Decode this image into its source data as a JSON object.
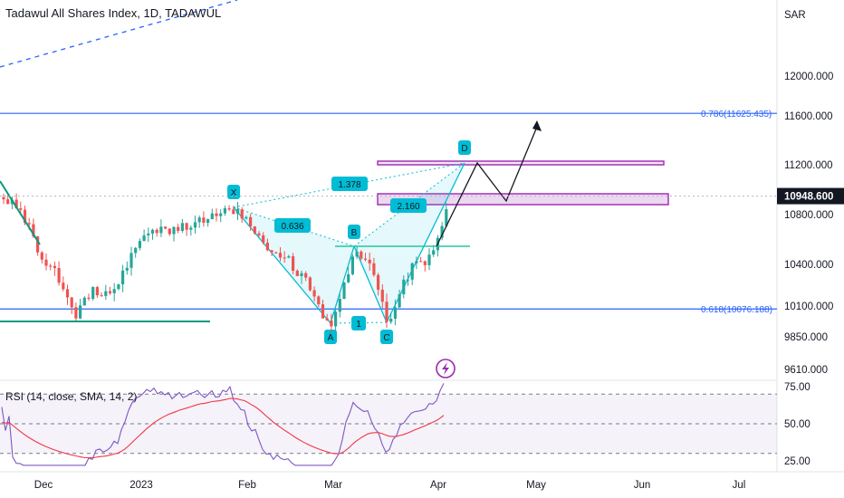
{
  "header": {
    "title": "Tadawul All Shares Index, 1D, TADAWUL"
  },
  "chart_data": {
    "type": "candlestick",
    "title": "Tadawul All Shares Index, 1D, TADAWUL",
    "currency": "SAR",
    "price_axis": {
      "labels": [
        "12000.000",
        "11600.000",
        "11200.000",
        "10800.000",
        "10400.000",
        "10100.000",
        "9850.000",
        "9610.000"
      ],
      "values": [
        12000,
        11600,
        11200,
        10800,
        10400,
        10100,
        9850,
        9610
      ],
      "current_price_label": "10948.600",
      "current_price": 10948.6
    },
    "time_axis": {
      "labels": [
        "Dec",
        "2023",
        "Feb",
        "Mar",
        "Apr",
        "May",
        "Jun",
        "Jul"
      ]
    },
    "fib_levels": [
      {
        "label": "0.786(11625.435)",
        "value": 11625.435
      },
      {
        "label": "0.618(10076.188)",
        "value": 10076.188
      }
    ],
    "harmonic_points": [
      {
        "name": "X",
        "value": 10860
      },
      {
        "name": "A",
        "value": 9920
      },
      {
        "name": "B",
        "value": 10540
      },
      {
        "name": "C",
        "value": 9930
      },
      {
        "name": "D",
        "value": 11220
      }
    ],
    "ratios": [
      "0.636",
      "1.378",
      "1",
      "2.160"
    ],
    "rsi": {
      "legend": "RSI (14, close, SMA, 14, 2)",
      "labels": [
        "75.00",
        "50.00",
        "25.00"
      ],
      "levels": [
        75,
        50,
        25
      ],
      "upper_band": 70,
      "lower_band": 30
    },
    "colors": {
      "up": "#26a69a",
      "down": "#ef5350",
      "fib": "#2962ff",
      "pattern": "#00bcd4",
      "zone": "#9c27b0",
      "rsi": "#7e57c2",
      "rsi_ma": "#f23645"
    }
  }
}
